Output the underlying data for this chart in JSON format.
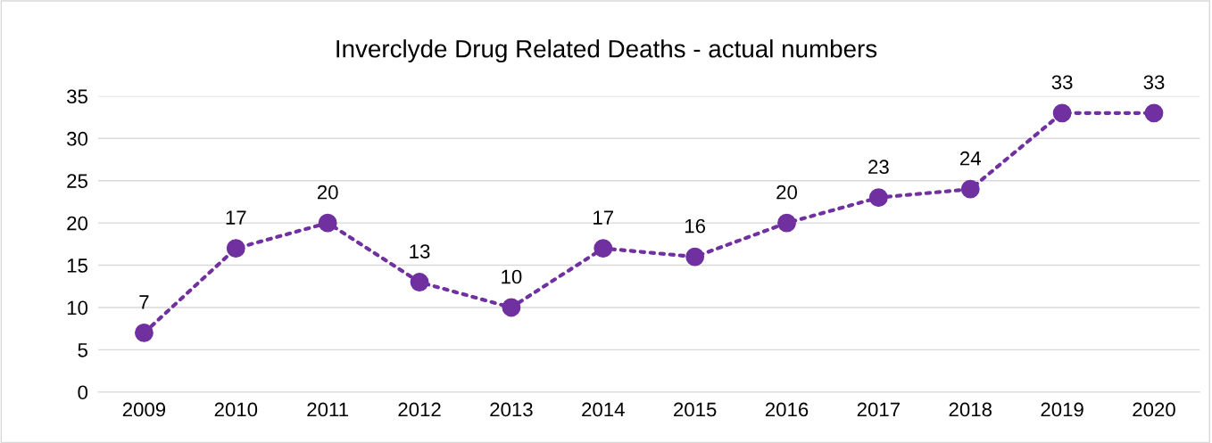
{
  "chart_data": {
    "type": "line",
    "title": "Inverclyde Drug Related Deaths - actual numbers",
    "categories": [
      "2009",
      "2010",
      "2011",
      "2012",
      "2013",
      "2014",
      "2015",
      "2016",
      "2017",
      "2018",
      "2019",
      "2020"
    ],
    "values": [
      7,
      17,
      20,
      13,
      10,
      17,
      16,
      20,
      23,
      24,
      33,
      33
    ],
    "color": "#7030a0",
    "marker": "circle",
    "line_style": "dotted",
    "data_labels": true,
    "ylim": [
      0,
      35
    ],
    "yticks": [
      0,
      5,
      10,
      15,
      20,
      25,
      30,
      35
    ],
    "grid": "y",
    "legend": false
  }
}
